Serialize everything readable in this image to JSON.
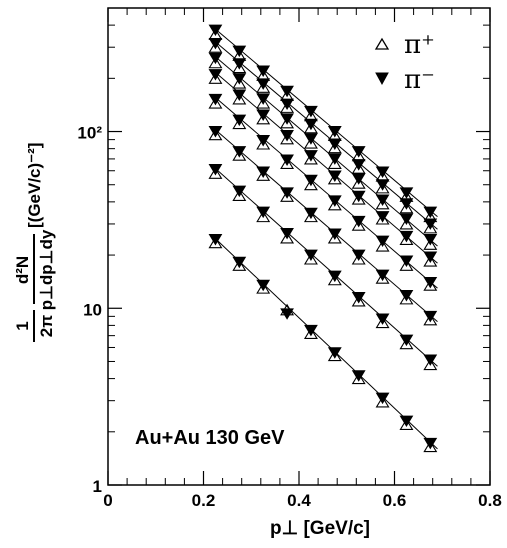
{
  "chart_data": {
    "type": "scatter",
    "title": "",
    "xlabel": "p⊥ [GeV/c]",
    "ylabel_parts": {
      "prefix": "1",
      "prefix_den": "2π",
      "num": "d²N",
      "den": "p⊥dp⊥dy",
      "unit": "[(GeV/c)⁻²]"
    },
    "xlim": [
      0,
      0.8
    ],
    "ylim": [
      1,
      500
    ],
    "yscale": "log",
    "x_ticks": [
      "0",
      "0.2",
      "0.4",
      "0.6",
      "0.8"
    ],
    "x_tick_values": [
      0,
      0.2,
      0.4,
      0.6,
      0.8
    ],
    "y_ticks": [
      "1",
      "10",
      "10²"
    ],
    "y_tick_values": [
      1,
      10,
      100
    ],
    "annotation": "Au+Au 130 GeV",
    "legend": {
      "placement": "top-right",
      "entries": [
        {
          "label": "π⁺",
          "marker": "open-triangle-up"
        },
        {
          "label": "π⁻",
          "marker": "filled-triangle-down"
        }
      ]
    },
    "x": [
      0.225,
      0.275,
      0.325,
      0.375,
      0.425,
      0.475,
      0.525,
      0.575,
      0.625,
      0.675
    ],
    "series": [
      {
        "pi_plus": [
          355,
          270,
          208,
          160,
          123,
          95,
          73,
          56,
          43,
          33
        ],
        "pi_minus": [
          375,
          285,
          220,
          169,
          130,
          100,
          77,
          59,
          45,
          35
        ],
        "fit": [
          [
            0.22,
            390
          ],
          [
            0.69,
            33
          ]
        ]
      },
      {
        "pi_plus": [
          300,
          230,
          178,
          137,
          105,
          81,
          62,
          48,
          37,
          28.5
        ],
        "pi_minus": [
          315,
          242,
          186,
          143,
          110,
          85,
          65,
          50,
          39,
          30
        ],
        "fit": [
          [
            0.22,
            330
          ],
          [
            0.69,
            28
          ]
        ]
      },
      {
        "pi_plus": [
          245,
          188,
          145,
          112,
          86,
          66,
          51,
          39,
          30,
          23
        ],
        "pi_minus": [
          260,
          199,
          153,
          118,
          91,
          70,
          54,
          41,
          32,
          24.5
        ],
        "fit": [
          [
            0.22,
            272
          ],
          [
            0.69,
            22.5
          ]
        ]
      },
      {
        "pi_plus": [
          200,
          153,
          118,
          91,
          70,
          54,
          41.5,
          32,
          24.5,
          18.5
        ],
        "pi_minus": [
          210,
          161,
          124,
          95,
          73,
          56,
          43,
          33,
          25.5,
          19.5
        ],
        "fit": [
          [
            0.22,
            222
          ],
          [
            0.69,
            18
          ]
        ]
      },
      {
        "pi_plus": [
          145,
          111,
          85,
          66,
          50,
          38.5,
          29.5,
          22.5,
          17.5,
          13.5
        ],
        "pi_minus": [
          152,
          116,
          89,
          69,
          53,
          40.5,
          31,
          24,
          18.5,
          14
        ],
        "fit": [
          [
            0.22,
            160
          ],
          [
            0.69,
            13
          ]
        ]
      },
      {
        "pi_plus": [
          96,
          73.5,
          56.5,
          43,
          33,
          25,
          19,
          14.8,
          11.3,
          8.6
        ],
        "pi_minus": [
          100,
          77,
          59,
          45,
          34.5,
          26.3,
          20,
          15.4,
          11.8,
          9
        ],
        "fit": [
          [
            0.22,
            105
          ],
          [
            0.69,
            8.4
          ]
        ]
      },
      {
        "pi_plus": [
          58,
          43.5,
          33,
          25,
          19,
          14.5,
          11,
          8.3,
          6.3,
          4.8
        ],
        "pi_minus": [
          61,
          46,
          35,
          26.5,
          20,
          15.2,
          11.5,
          8.7,
          6.6,
          5.1
        ],
        "fit": [
          [
            0.22,
            63.5
          ],
          [
            0.69,
            4.7
          ]
        ]
      },
      {
        "pi_plus": [
          23.5,
          17.5,
          13,
          9.8,
          7.2,
          5.4,
          4.0,
          2.95,
          2.2,
          1.65
        ],
        "pi_minus": [
          24.5,
          18.2,
          13.5,
          9.3,
          7.5,
          5.6,
          4.15,
          3.1,
          2.3,
          1.72
        ],
        "fit": [
          [
            0.22,
            25.5
          ],
          [
            0.69,
            1.6
          ]
        ]
      }
    ]
  }
}
